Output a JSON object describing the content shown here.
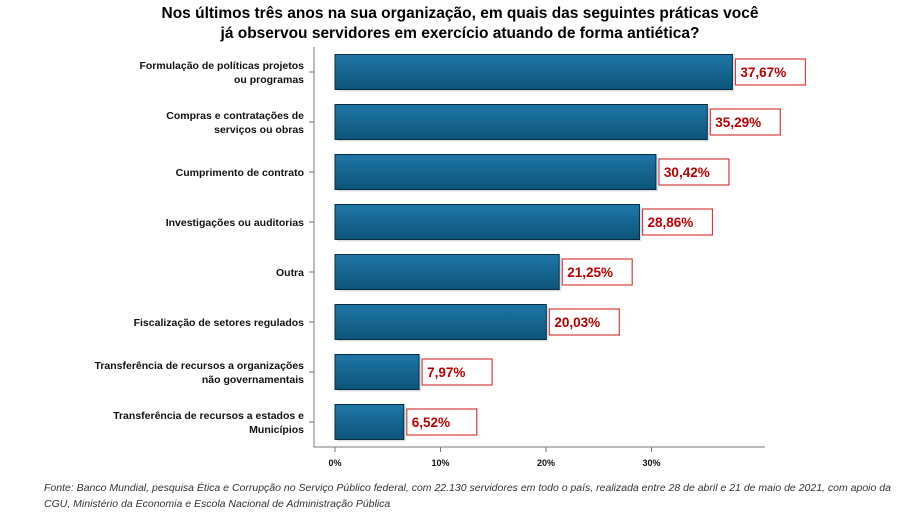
{
  "chart_data": {
    "type": "bar",
    "orientation": "horizontal",
    "title_lines": [
      "Nos últimos três anos na sua organização, em quais das seguintes práticas você",
      "já observou servidores em exercício atuando de forma antiética?"
    ],
    "categories": [
      [
        "Formulação de políticas projetos",
        "ou programas"
      ],
      [
        "Compras e contratações de",
        "serviços ou obras"
      ],
      [
        "Cumprimento de contrato"
      ],
      [
        "Investigações ou auditorias"
      ],
      [
        "Outra"
      ],
      [
        "Fiscalização de setores regulados"
      ],
      [
        "Transferência de recursos a organizações",
        "não governamentais"
      ],
      [
        "Transferência de recursos a estados e",
        "Municípios"
      ]
    ],
    "values": [
      37.67,
      35.29,
      30.42,
      28.86,
      21.25,
      20.03,
      7.97,
      6.52
    ],
    "value_labels": [
      "37,67%",
      "35,29%",
      "30,42%",
      "28,86%",
      "21,25%",
      "20,03%",
      "7,97%",
      "6,52%"
    ],
    "xlim": [
      0,
      40
    ],
    "xticks": [
      0,
      10,
      20,
      30
    ],
    "xtick_labels": [
      "0%",
      "10%",
      "20%",
      "30%"
    ],
    "xlabel": "",
    "ylabel": "",
    "colors": {
      "bar_light": "#1f77a8",
      "bar_dark": "#0c5479",
      "bar_edge": "#0a2a3d",
      "label_text": "#b80000",
      "label_border": "#d43c3c"
    }
  },
  "source_note": "Fonte: Banco Mundial, pesquisa Ética e Corrupção no Serviço Público federal, com 22.130 servidores em todo o país, realizada entre 28 de abril e 21 de maio de 2021, com apoio da CGU, Ministério da Economia e Escola Nacional de Administração Pública"
}
